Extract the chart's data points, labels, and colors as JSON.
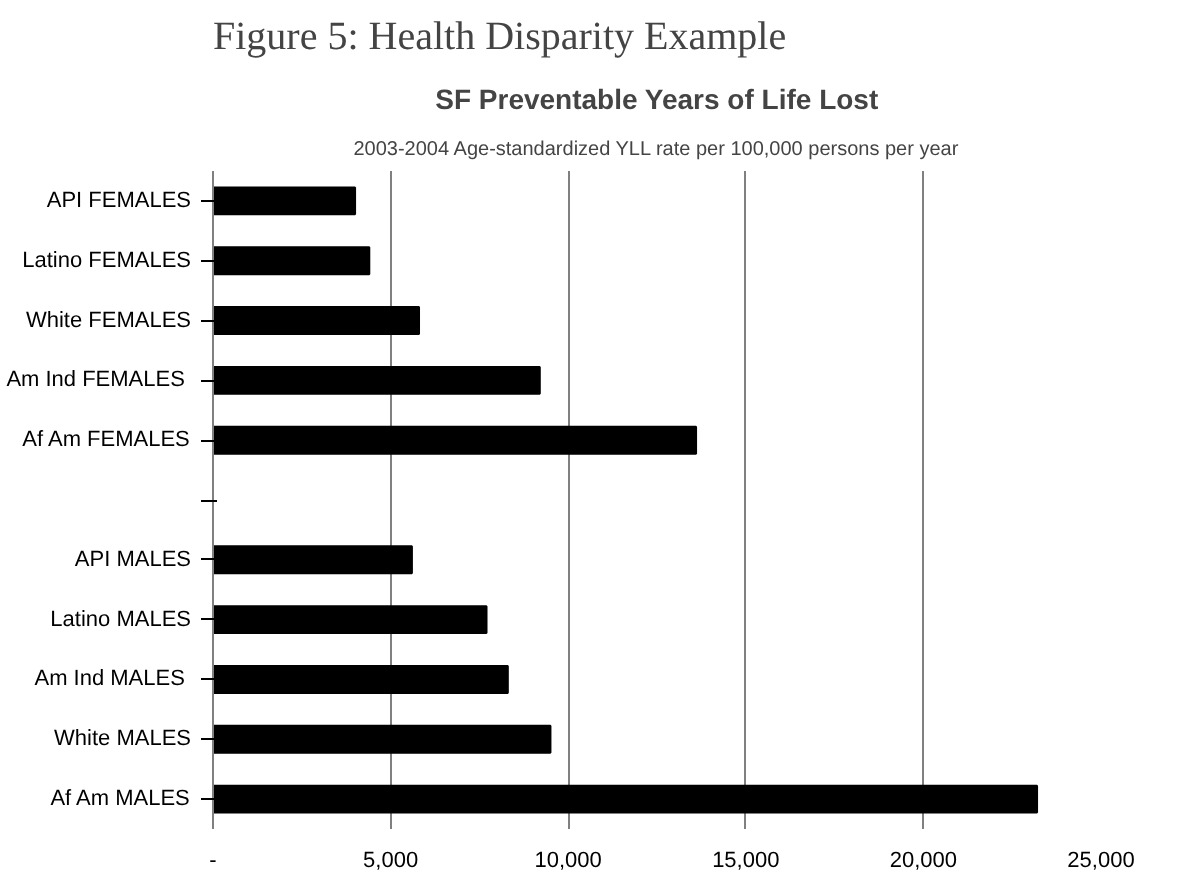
{
  "chart_data": {
    "type": "bar",
    "orientation": "horizontal",
    "title": "SF Preventable Years of Life Lost",
    "subtitle": "2003-2004 Age-standardized YLL rate per 100,000 persons per year",
    "annotations": [
      "Figure 5: Health Disparity Example"
    ],
    "categories": [
      "API FEMALES",
      "Latino FEMALES",
      "White FEMALES",
      "Am Ind  FEMALES",
      "Af Am FEMALES",
      null,
      "API MALES",
      "Latino MALES",
      "Am Ind  MALES",
      "White MALES",
      "Af Am MALES"
    ],
    "values": [
      4000,
      4400,
      5800,
      9200,
      13600,
      null,
      5600,
      7700,
      8300,
      9500,
      23200
    ],
    "color": "#000000",
    "xlim": [
      0,
      25000
    ],
    "xticks": [
      {
        "value": 0,
        "label": "-"
      },
      {
        "value": 5000,
        "label": "5,000"
      },
      {
        "value": 10000,
        "label": "10,000"
      },
      {
        "value": 15000,
        "label": "15,000"
      },
      {
        "value": 20000,
        "label": "20,000"
      },
      {
        "value": 25000,
        "label": "25,000"
      }
    ],
    "grid": "x"
  }
}
